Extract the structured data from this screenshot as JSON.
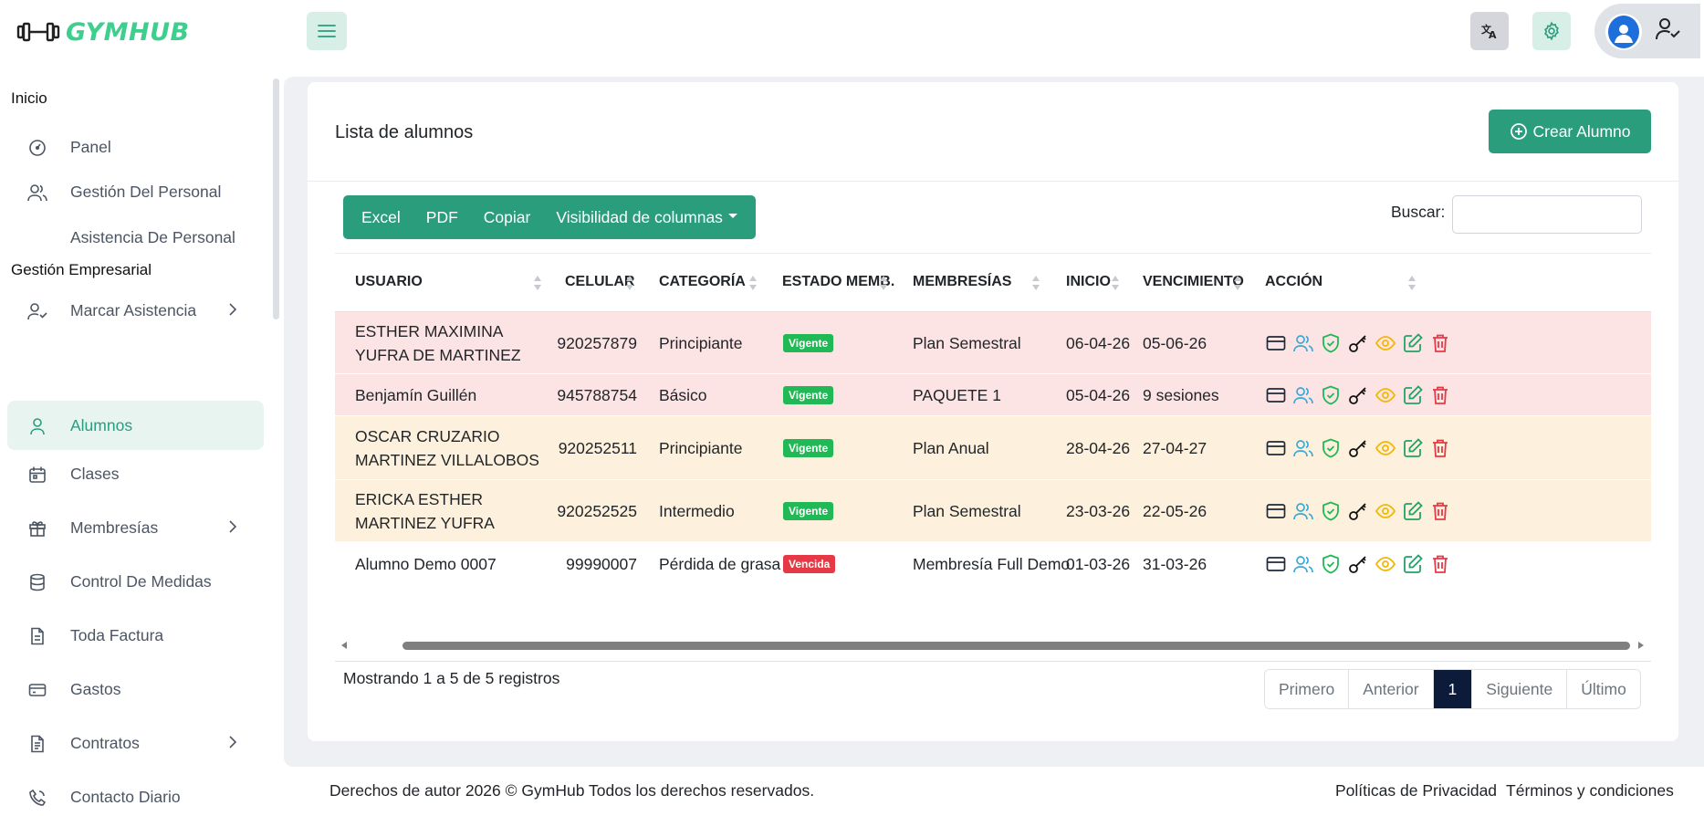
{
  "header": {
    "logo_text": "GYMHUB",
    "colors": {
      "brand": "#3ecf8e",
      "accent": "#2a9d7c"
    }
  },
  "sidebar": {
    "section_inicio": "Inicio",
    "section_gestion": "Gestión Empresarial",
    "items": [
      {
        "label": "Panel",
        "icon": "dashboard-icon"
      },
      {
        "label": "Gestión Del Personal",
        "icon": "users-icon"
      },
      {
        "label": "Asistencia De Personal",
        "icon": ""
      },
      {
        "label": "Marcar Asistencia",
        "icon": "user-check-icon"
      },
      {
        "label": "Alumnos",
        "icon": "user-icon"
      },
      {
        "label": "Clases",
        "icon": "calendar-icon"
      },
      {
        "label": "Membresías",
        "icon": "gift-icon"
      },
      {
        "label": "Control De Medidas",
        "icon": "database-icon"
      },
      {
        "label": "Toda Factura",
        "icon": "file-icon"
      },
      {
        "label": "Gastos",
        "icon": "card-icon"
      },
      {
        "label": "Contratos",
        "icon": "contract-icon"
      },
      {
        "label": "Contacto Diario",
        "icon": "phone-icon"
      }
    ]
  },
  "main": {
    "title": "Lista de alumnos",
    "create_button": "Crear Alumno",
    "export_buttons": [
      "Excel",
      "PDF",
      "Copiar",
      "Visibilidad de columnas"
    ],
    "search_label": "Buscar:",
    "search_value": "",
    "columns": [
      "USUARIO",
      "CELULAR",
      "CATEGORÍA",
      "ESTADO MEMB.",
      "MEMBRESÍAS",
      "INICIO",
      "VENCIMIENTO",
      "ACCIÓN"
    ],
    "rows": [
      {
        "usuario": "ESTHER MAXIMINA YUFRA DE MARTINEZ",
        "celular": "920257879",
        "categoria": "Principiante",
        "estado": "Vigente",
        "membresia": "Plan Semestral",
        "inicio": "06-04-26",
        "vencimiento": "05-06-26",
        "bg": "#fde4e4"
      },
      {
        "usuario": "Benjamín Guillén",
        "celular": "945788754",
        "categoria": "Básico",
        "estado": "Vigente",
        "membresia": "PAQUETE 1",
        "inicio": "05-04-26",
        "vencimiento": "9 sesiones",
        "bg": "#fde4e4"
      },
      {
        "usuario": "OSCAR CRUZARIO MARTINEZ VILLALOBOS",
        "celular": "920252511",
        "categoria": "Principiante",
        "estado": "Vigente",
        "membresia": "Plan Anual",
        "inicio": "28-04-26",
        "vencimiento": "27-04-27",
        "bg": "#fdf1dd"
      },
      {
        "usuario": "ERICKA ESTHER MARTINEZ YUFRA",
        "celular": "920252525",
        "categoria": "Intermedio",
        "estado": "Vigente",
        "membresia": "Plan Semestral",
        "inicio": "23-03-26",
        "vencimiento": "22-05-26",
        "bg": "#fdf1dd"
      },
      {
        "usuario": "Alumno Demo 0007",
        "celular": "99990007",
        "categoria": "Pérdida de grasa",
        "estado": "Vencida",
        "membresia": "Membresía Full Demo",
        "inicio": "01-03-26",
        "vencimiento": "31-03-26",
        "bg": "#ffffff"
      }
    ],
    "showing_text": "Mostrando 1 a 5 de 5 registros",
    "pagination": [
      "Primero",
      "Anterior",
      "1",
      "Siguiente",
      "Último"
    ]
  },
  "footer": {
    "copyright": "Derechos de autor 2026 © GymHub Todos los derechos reservados.",
    "privacy": "Políticas de Privacidad",
    "terms": "Términos y condiciones"
  }
}
